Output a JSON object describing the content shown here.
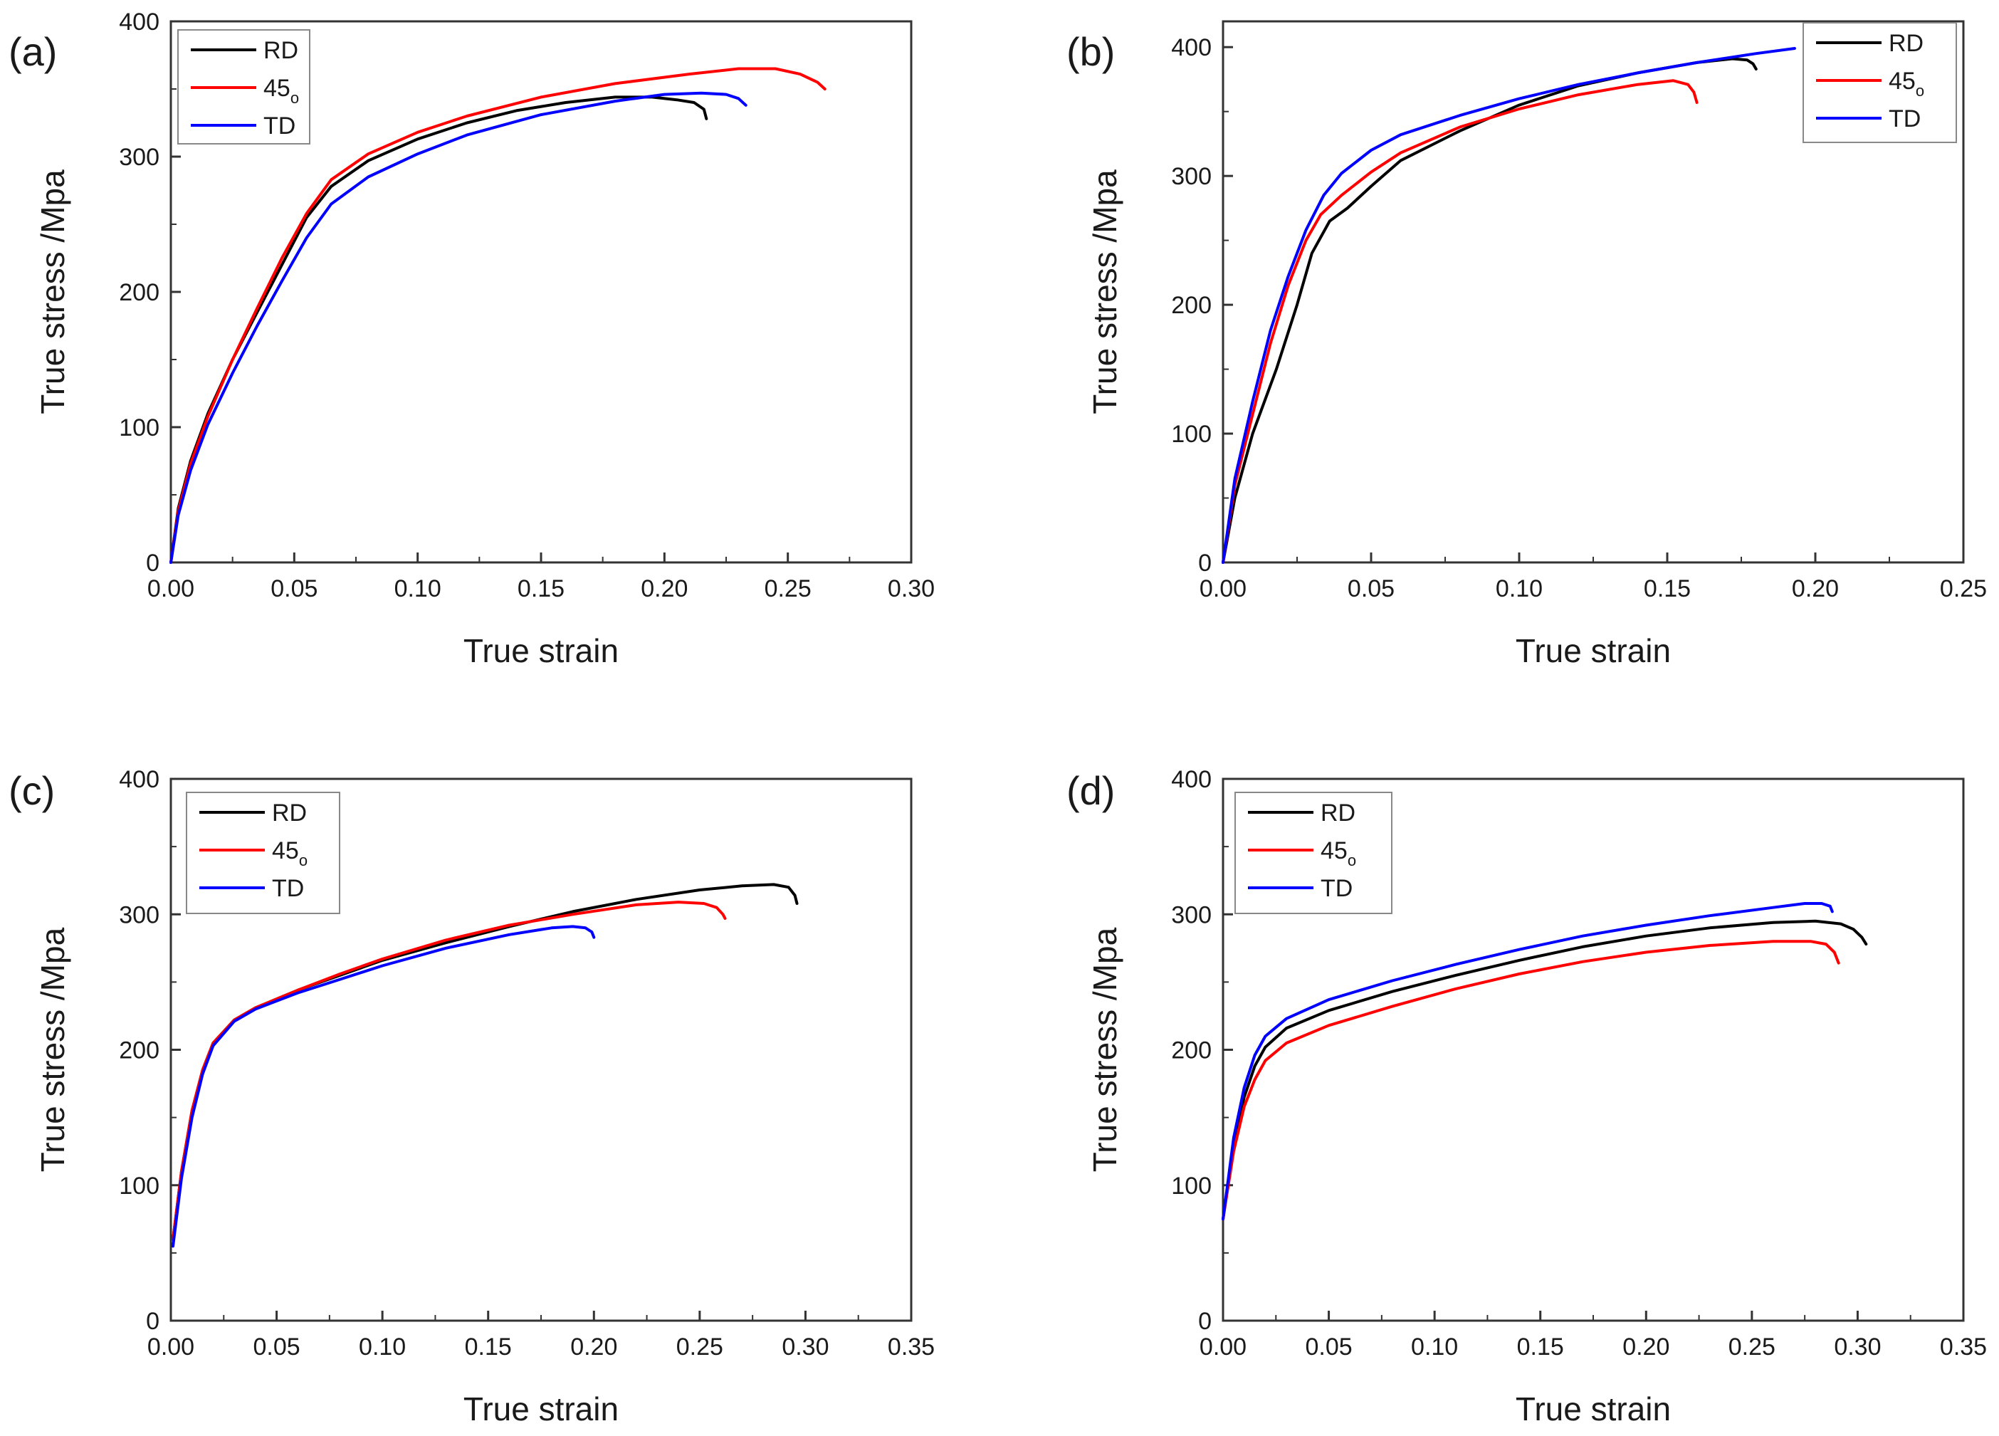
{
  "chart_data": [
    {
      "type": "line",
      "panel": "(a)",
      "xlabel": "True strain",
      "ylabel": "True stress /Mpa",
      "xlim": [
        0,
        0.3
      ],
      "ylim": [
        0,
        400
      ],
      "xticks": [
        "0.00",
        "0.05",
        "0.10",
        "0.15",
        "0.20",
        "0.25",
        "0.30"
      ],
      "yticks": [
        "0",
        "100",
        "200",
        "300",
        "400"
      ],
      "legend_position": "top-left",
      "series": [
        {
          "name": "RD",
          "sub": "",
          "color": "#000000",
          "x": [
            0,
            0.003,
            0.008,
            0.015,
            0.025,
            0.035,
            0.045,
            0.055,
            0.065,
            0.08,
            0.1,
            0.12,
            0.14,
            0.16,
            0.18,
            0.195,
            0.205,
            0.212,
            0.216,
            0.217
          ],
          "y": [
            0,
            40,
            75,
            110,
            150,
            185,
            220,
            255,
            278,
            297,
            313,
            325,
            334,
            340,
            344,
            344,
            342,
            340,
            335,
            328
          ]
        },
        {
          "name": "45",
          "sub": "o",
          "color": "#ff0000",
          "x": [
            0,
            0.003,
            0.008,
            0.015,
            0.025,
            0.035,
            0.045,
            0.055,
            0.065,
            0.08,
            0.1,
            0.12,
            0.15,
            0.18,
            0.21,
            0.23,
            0.245,
            0.255,
            0.262,
            0.265
          ],
          "y": [
            0,
            38,
            73,
            108,
            150,
            188,
            225,
            258,
            283,
            302,
            318,
            330,
            344,
            354,
            361,
            365,
            365,
            361,
            355,
            350
          ]
        },
        {
          "name": "TD",
          "sub": "",
          "color": "#0000ff",
          "x": [
            0,
            0.003,
            0.008,
            0.015,
            0.025,
            0.035,
            0.045,
            0.055,
            0.065,
            0.08,
            0.1,
            0.12,
            0.15,
            0.18,
            0.2,
            0.215,
            0.225,
            0.23,
            0.233
          ],
          "y": [
            0,
            35,
            68,
            102,
            140,
            175,
            208,
            240,
            265,
            285,
            302,
            316,
            331,
            341,
            346,
            347,
            346,
            343,
            338
          ]
        }
      ]
    },
    {
      "type": "line",
      "panel": "(b)",
      "xlabel": "True strain",
      "ylabel": "True stress /Mpa",
      "xlim": [
        0,
        0.25
      ],
      "ylim": [
        0,
        420
      ],
      "xticks": [
        "0.00",
        "0.05",
        "0.10",
        "0.15",
        "0.20",
        "0.25"
      ],
      "yticks": [
        "0",
        "100",
        "200",
        "300",
        "400"
      ],
      "legend_position": "top-right",
      "series": [
        {
          "name": "RD",
          "sub": "",
          "color": "#000000",
          "x": [
            0,
            0.004,
            0.01,
            0.018,
            0.025,
            0.03,
            0.036,
            0.042,
            0.05,
            0.06,
            0.08,
            0.1,
            0.12,
            0.14,
            0.16,
            0.172,
            0.177,
            0.179,
            0.18
          ],
          "y": [
            0,
            50,
            100,
            150,
            200,
            240,
            265,
            275,
            292,
            312,
            335,
            355,
            370,
            380,
            388,
            391,
            390,
            387,
            383
          ]
        },
        {
          "name": "45",
          "sub": "o",
          "color": "#ff0000",
          "x": [
            0,
            0.004,
            0.01,
            0.016,
            0.022,
            0.028,
            0.033,
            0.04,
            0.05,
            0.06,
            0.08,
            0.1,
            0.12,
            0.14,
            0.152,
            0.157,
            0.159,
            0.16
          ],
          "y": [
            0,
            60,
            115,
            170,
            215,
            250,
            270,
            285,
            303,
            318,
            338,
            352,
            363,
            371,
            374,
            371,
            365,
            357
          ]
        },
        {
          "name": "TD",
          "sub": "",
          "color": "#0000ff",
          "x": [
            0,
            0.004,
            0.01,
            0.016,
            0.022,
            0.028,
            0.034,
            0.04,
            0.05,
            0.06,
            0.08,
            0.1,
            0.12,
            0.14,
            0.16,
            0.18,
            0.193
          ],
          "y": [
            0,
            65,
            125,
            180,
            222,
            258,
            285,
            302,
            320,
            332,
            347,
            360,
            371,
            380,
            388,
            395,
            399
          ]
        }
      ]
    },
    {
      "type": "line",
      "panel": "(c)",
      "xlabel": "True strain",
      "ylabel": "True stress /Mpa",
      "xlim": [
        0,
        0.35
      ],
      "ylim": [
        0,
        400
      ],
      "xticks": [
        "0.00",
        "0.05",
        "0.10",
        "0.15",
        "0.20",
        "0.25",
        "0.30",
        "0.35"
      ],
      "yticks": [
        "0",
        "100",
        "200",
        "300",
        "400"
      ],
      "legend_position": "top-left",
      "series": [
        {
          "name": "RD",
          "sub": "",
          "color": "#000000",
          "x": [
            0.001,
            0.005,
            0.01,
            0.015,
            0.02,
            0.03,
            0.04,
            0.06,
            0.08,
            0.1,
            0.13,
            0.16,
            0.19,
            0.22,
            0.25,
            0.27,
            0.285,
            0.292,
            0.295,
            0.296
          ],
          "y": [
            60,
            110,
            155,
            185,
            205,
            222,
            231,
            244,
            255,
            266,
            279,
            291,
            302,
            311,
            318,
            321,
            322,
            320,
            314,
            308
          ]
        },
        {
          "name": "45",
          "sub": "o",
          "color": "#ff0000",
          "x": [
            0.001,
            0.005,
            0.01,
            0.015,
            0.02,
            0.03,
            0.04,
            0.06,
            0.08,
            0.1,
            0.13,
            0.16,
            0.19,
            0.22,
            0.24,
            0.252,
            0.258,
            0.261,
            0.262
          ],
          "y": [
            60,
            110,
            155,
            185,
            205,
            222,
            231,
            244,
            256,
            267,
            281,
            292,
            300,
            307,
            309,
            308,
            305,
            300,
            297
          ]
        },
        {
          "name": "TD",
          "sub": "",
          "color": "#0000ff",
          "x": [
            0.001,
            0.005,
            0.01,
            0.015,
            0.02,
            0.03,
            0.04,
            0.06,
            0.08,
            0.1,
            0.13,
            0.16,
            0.18,
            0.19,
            0.196,
            0.199,
            0.2
          ],
          "y": [
            55,
            105,
            150,
            182,
            203,
            221,
            230,
            242,
            252,
            262,
            275,
            285,
            290,
            291,
            290,
            287,
            283
          ]
        }
      ]
    },
    {
      "type": "line",
      "panel": "(d)",
      "xlabel": "True strain",
      "ylabel": "True stress /Mpa",
      "xlim": [
        0,
        0.35
      ],
      "ylim": [
        0,
        400
      ],
      "xticks": [
        "0.00",
        "0.05",
        "0.10",
        "0.15",
        "0.20",
        "0.25",
        "0.30",
        "0.35"
      ],
      "yticks": [
        "0",
        "100",
        "200",
        "300",
        "400"
      ],
      "legend_position": "top-left",
      "series": [
        {
          "name": "RD",
          "sub": "",
          "color": "#000000",
          "x": [
            0,
            0.005,
            0.01,
            0.015,
            0.02,
            0.03,
            0.05,
            0.08,
            0.11,
            0.14,
            0.17,
            0.2,
            0.23,
            0.26,
            0.28,
            0.292,
            0.298,
            0.302,
            0.304
          ],
          "y": [
            75,
            130,
            165,
            188,
            202,
            216,
            229,
            243,
            255,
            266,
            276,
            284,
            290,
            294,
            295,
            293,
            289,
            283,
            278
          ]
        },
        {
          "name": "45",
          "sub": "o",
          "color": "#ff0000",
          "x": [
            0,
            0.005,
            0.01,
            0.015,
            0.02,
            0.03,
            0.05,
            0.08,
            0.11,
            0.14,
            0.17,
            0.2,
            0.23,
            0.26,
            0.278,
            0.285,
            0.289,
            0.291
          ],
          "y": [
            75,
            125,
            158,
            178,
            192,
            205,
            218,
            232,
            245,
            256,
            265,
            272,
            277,
            280,
            280,
            278,
            272,
            264
          ]
        },
        {
          "name": "TD",
          "sub": "",
          "color": "#0000ff",
          "x": [
            0,
            0.005,
            0.01,
            0.015,
            0.02,
            0.03,
            0.05,
            0.08,
            0.11,
            0.14,
            0.17,
            0.2,
            0.23,
            0.26,
            0.275,
            0.283,
            0.287,
            0.288
          ],
          "y": [
            75,
            135,
            172,
            196,
            210,
            223,
            237,
            251,
            263,
            274,
            284,
            292,
            299,
            305,
            308,
            308,
            306,
            302
          ]
        }
      ]
    }
  ]
}
